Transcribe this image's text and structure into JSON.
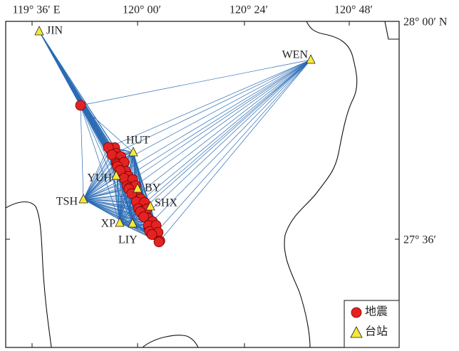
{
  "map": {
    "lon_labels": [
      "119° 36′ E",
      "120° 00′",
      "120° 24′",
      "120° 48′"
    ],
    "lat_labels": [
      "28° 00′ N",
      "27° 36′"
    ],
    "stations": [
      "JIN",
      "WEN",
      "HUT",
      "YUH",
      "BY",
      "TSH",
      "SHX",
      "XP",
      "LIY"
    ],
    "legend": [
      "地震",
      "台站"
    ]
  }
}
